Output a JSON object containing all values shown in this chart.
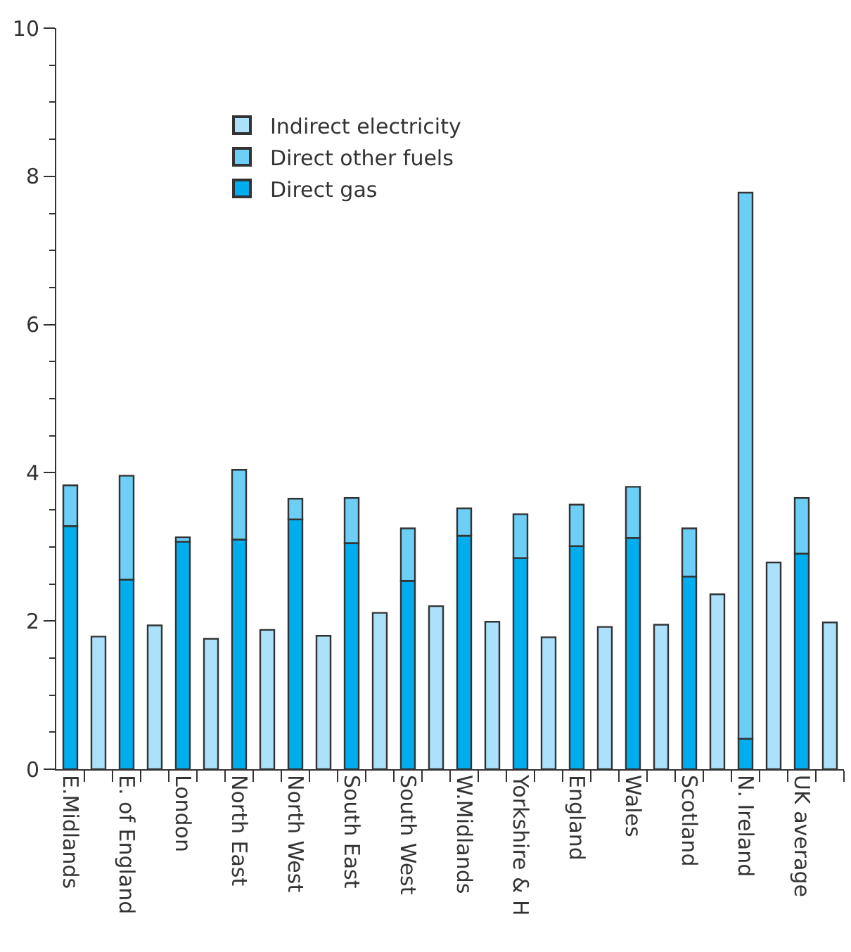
{
  "chart_data": {
    "type": "bar",
    "stacked": true,
    "categories": [
      "E.Midlands",
      null,
      "E. of England",
      null,
      "London",
      null,
      "North East",
      null,
      "North West",
      null,
      "South East",
      null,
      "South West",
      null,
      "W.Midlands",
      null,
      "Yorkshire & H",
      null,
      "England",
      null,
      "Wales",
      null,
      "Scotland",
      null,
      "N. Ireland",
      null,
      "UK average",
      null
    ],
    "series": [
      {
        "name": "Direct gas",
        "color": "#00aeef",
        "values": [
          3.28,
          null,
          2.56,
          null,
          3.07,
          null,
          3.1,
          null,
          3.37,
          null,
          3.05,
          null,
          2.54,
          null,
          3.15,
          null,
          2.85,
          null,
          3.01,
          null,
          3.12,
          null,
          2.6,
          null,
          0.41,
          null,
          2.91,
          null
        ]
      },
      {
        "name": "Direct other fuels",
        "color": "#6dcff6",
        "values": [
          0.55,
          null,
          1.4,
          null,
          0.06,
          null,
          0.94,
          null,
          0.28,
          null,
          0.61,
          null,
          0.71,
          null,
          0.37,
          null,
          0.59,
          null,
          0.56,
          null,
          0.69,
          null,
          0.65,
          null,
          7.37,
          null,
          0.75,
          null
        ]
      },
      {
        "name": "Indirect electricity",
        "color": "#abe1fa",
        "values": [
          null,
          1.79,
          null,
          1.94,
          null,
          1.76,
          null,
          1.88,
          null,
          1.8,
          null,
          2.11,
          null,
          2.2,
          null,
          1.99,
          null,
          1.78,
          null,
          1.92,
          null,
          1.95,
          null,
          2.36,
          null,
          2.79,
          null,
          1.98
        ]
      }
    ],
    "ylim": [
      0,
      10
    ],
    "yticks": [
      0,
      2,
      4,
      6,
      8,
      10
    ],
    "legend": "top left"
  }
}
